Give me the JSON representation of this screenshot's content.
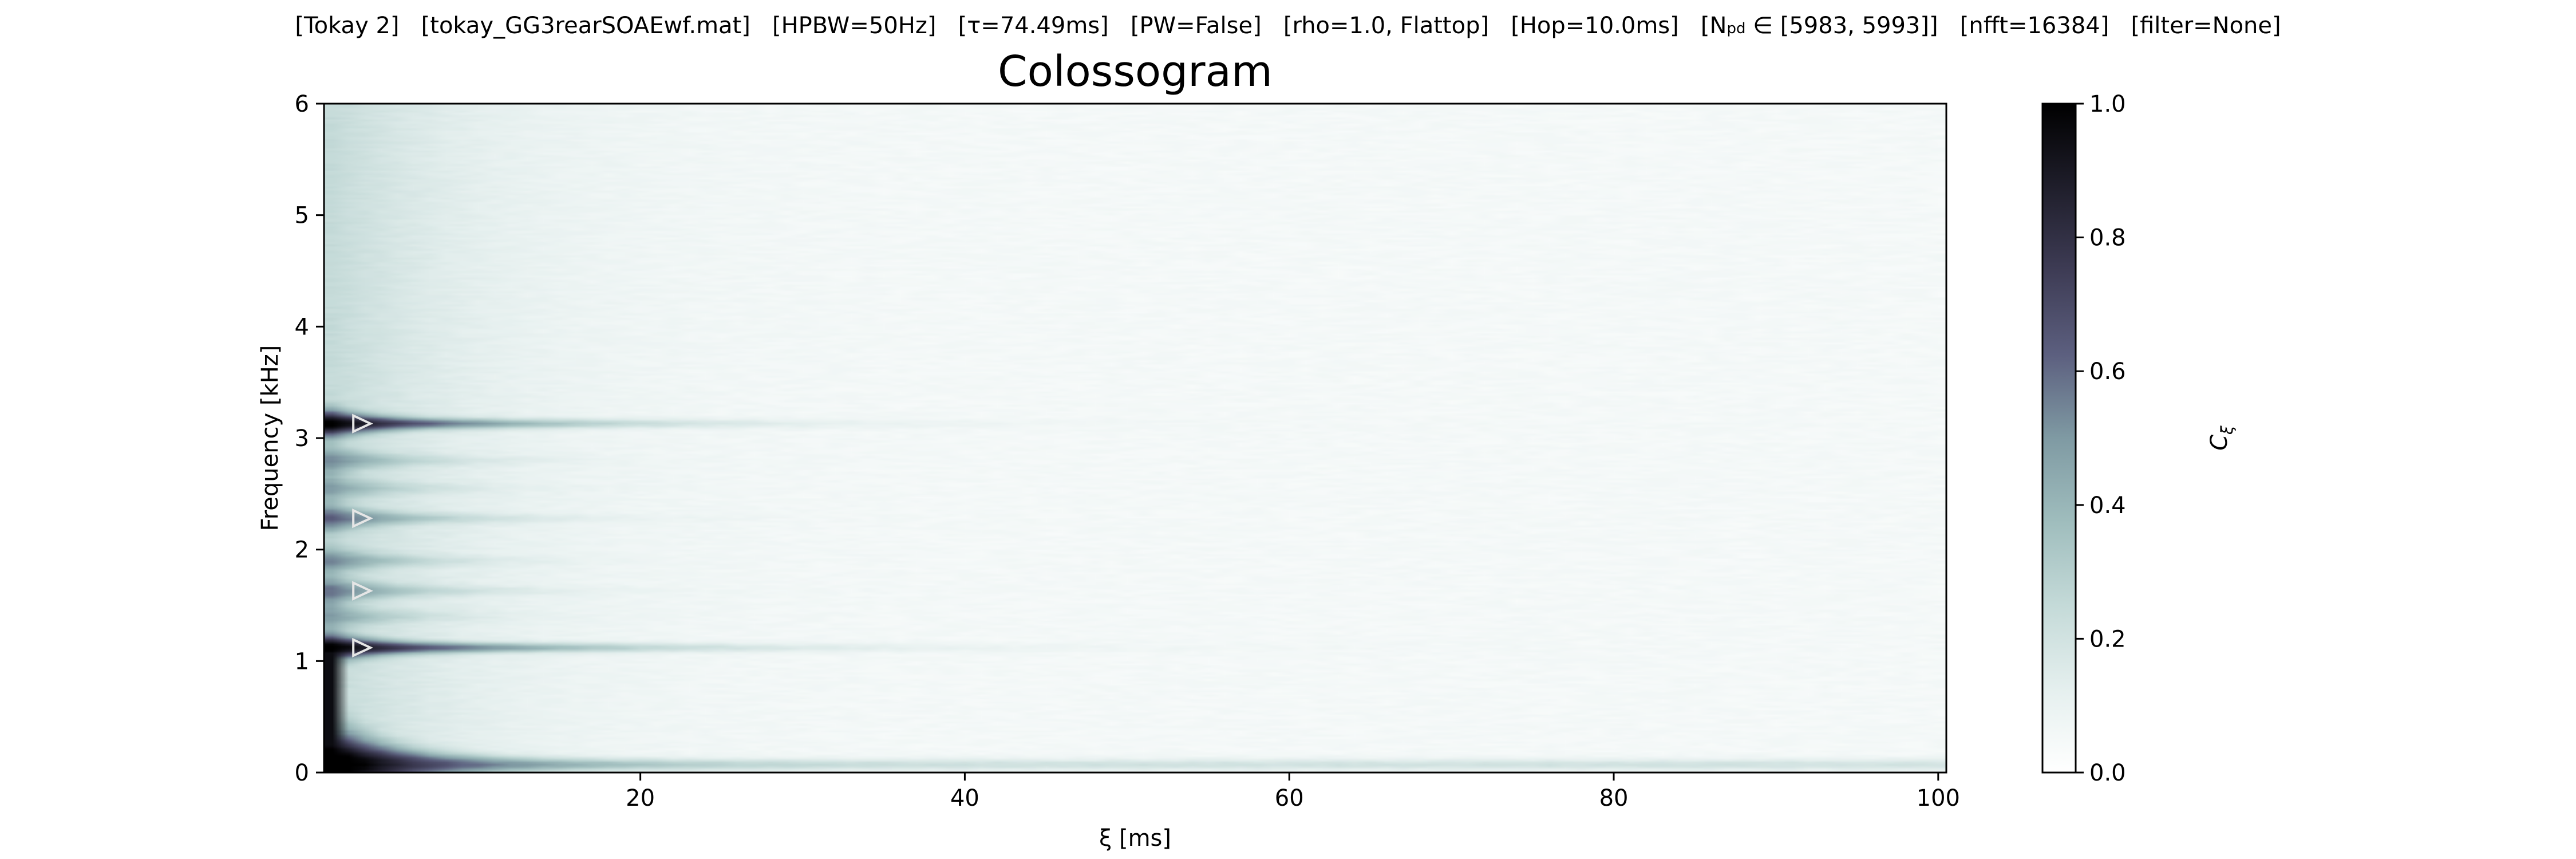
{
  "header": {
    "segments": [
      "[Tokay 2]",
      "[tokay_GG3rearSOAEwf.mat]",
      "[HPBW=50Hz]",
      "[τ=74.49ms]",
      "[PW=False]",
      "[rho=1.0, Flattop]",
      "[Hop=10.0ms]",
      "[N_pd ∈ [5983, 5993]]",
      "[nfft=16384]",
      "[filter=None]"
    ]
  },
  "chart_data": {
    "type": "heatmap",
    "title": "Colossogram",
    "xlabel": "ξ [ms]",
    "ylabel": "Frequency [kHz]",
    "colorbar_label": "C_ξ",
    "xlim": [
      0.5,
      100.5
    ],
    "ylim": [
      0,
      6
    ],
    "clim": [
      0,
      1
    ],
    "x_ticks": [
      20,
      40,
      60,
      80,
      100
    ],
    "y_ticks": [
      0,
      1,
      2,
      3,
      4,
      5,
      6
    ],
    "colorbar_ticks": [
      "0.0",
      "0.2",
      "0.4",
      "0.6",
      "0.8",
      "1.0"
    ],
    "colormap": "bone_r",
    "grid": false,
    "peak_markers_khz": [
      1.12,
      1.63,
      2.28,
      3.13
    ],
    "coherent_bands": [
      {
        "freq_khz": 0.07,
        "peak_value": 1.0,
        "decay_to_ms": 100
      },
      {
        "freq_khz": 1.12,
        "peak_value": 0.85,
        "decay_to_ms": 35
      },
      {
        "freq_khz": 3.13,
        "peak_value": 0.85,
        "decay_to_ms": 30
      },
      {
        "freq_khz": 2.28,
        "peak_value": 0.45,
        "decay_to_ms": 18
      },
      {
        "freq_khz": 1.63,
        "peak_value": 0.4,
        "decay_to_ms": 16
      },
      {
        "freq_khz": 2.8,
        "peak_value": 0.35,
        "decay_to_ms": 14
      },
      {
        "freq_khz": 1.9,
        "peak_value": 0.35,
        "decay_to_ms": 14
      },
      {
        "freq_khz": 2.55,
        "peak_value": 0.3,
        "decay_to_ms": 12
      },
      {
        "freq_khz": 1.4,
        "peak_value": 0.3,
        "decay_to_ms": 12
      }
    ]
  }
}
